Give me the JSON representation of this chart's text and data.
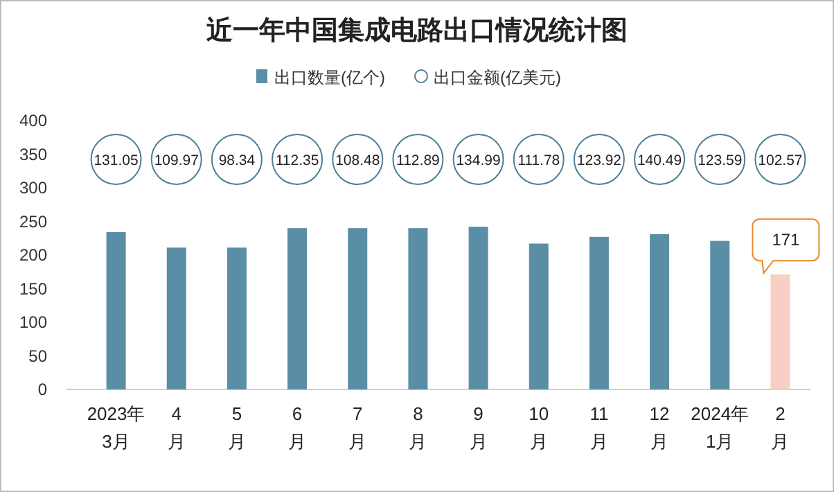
{
  "chart_data": {
    "type": "bar",
    "title": "近一年中国集成电路出口情况统计图",
    "categories": [
      "2023年\n3月",
      "4\n月",
      "5\n月",
      "6\n月",
      "7\n月",
      "8\n月",
      "9\n月",
      "10\n月",
      "11\n月",
      "12\n月",
      "2024年\n1月",
      "2\n月"
    ],
    "series": [
      {
        "name": "出口数量(亿个)",
        "color": "#5a8ea6",
        "colors": [
          "#5a8ea6",
          "#5a8ea6",
          "#5a8ea6",
          "#5a8ea6",
          "#5a8ea6",
          "#5a8ea6",
          "#5a8ea6",
          "#5a8ea6",
          "#5a8ea6",
          "#5a8ea6",
          "#5a8ea6",
          "#f8cfc4"
        ],
        "values": [
          234,
          211,
          211,
          240,
          240,
          240,
          242,
          217,
          227,
          231,
          221,
          171
        ],
        "value_labels": [
          null,
          null,
          null,
          null,
          null,
          null,
          null,
          null,
          null,
          null,
          null,
          "171"
        ]
      }
    ],
    "annotations": [
      "出口金额(亿美元)",
      "131.05",
      "109.97",
      "98.34",
      "112.35",
      "108.48",
      "112.89",
      "134.99",
      "111.78",
      "123.92",
      "140.49",
      "123.59",
      "102.57"
    ],
    "ylim": [
      0,
      400
    ],
    "yticks": [
      0,
      50,
      100,
      150,
      200,
      250,
      300,
      350,
      400
    ],
    "legend": "top"
  }
}
